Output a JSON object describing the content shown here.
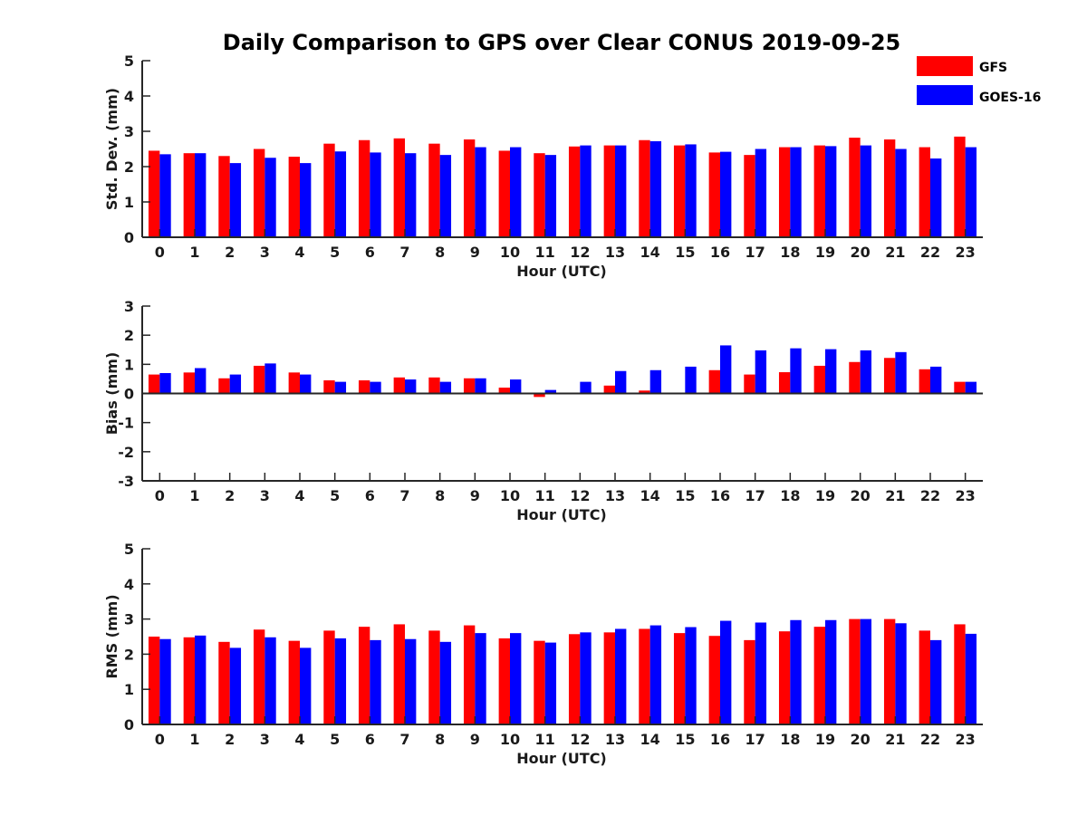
{
  "title": "Daily Comparison to GPS over Clear CONUS 2019-09-25",
  "legend": [
    {
      "name": "GFS",
      "color": "#ff0000"
    },
    {
      "name": "GOES-16",
      "color": "#0000ff"
    }
  ],
  "chart_data": [
    {
      "type": "bar",
      "id": "std",
      "xlabel": "Hour (UTC)",
      "ylabel": "Std. Dev. (mm)",
      "ylim": [
        0,
        5
      ],
      "yticks": [
        0,
        1,
        2,
        3,
        4,
        5
      ],
      "categories": [
        "0",
        "1",
        "2",
        "3",
        "4",
        "5",
        "6",
        "7",
        "8",
        "9",
        "10",
        "11",
        "12",
        "13",
        "14",
        "15",
        "16",
        "17",
        "18",
        "19",
        "20",
        "21",
        "22",
        "23"
      ],
      "series": [
        {
          "name": "GFS",
          "color": "#ff0000",
          "values": [
            2.45,
            2.38,
            2.3,
            2.5,
            2.28,
            2.65,
            2.75,
            2.8,
            2.65,
            2.77,
            2.45,
            2.38,
            2.57,
            2.6,
            2.75,
            2.6,
            2.4,
            2.33,
            2.55,
            2.6,
            2.82,
            2.77,
            2.55,
            2.85
          ]
        },
        {
          "name": "GOES-16",
          "color": "#0000ff",
          "values": [
            2.35,
            2.38,
            2.1,
            2.25,
            2.1,
            2.43,
            2.4,
            2.38,
            2.33,
            2.55,
            2.55,
            2.33,
            2.6,
            2.6,
            2.72,
            2.63,
            2.42,
            2.5,
            2.55,
            2.58,
            2.6,
            2.5,
            2.23,
            2.55
          ]
        }
      ]
    },
    {
      "type": "bar",
      "id": "bias",
      "xlabel": "Hour (UTC)",
      "ylabel": "Bias (mm)",
      "ylim": [
        -3,
        3
      ],
      "yticks": [
        -3,
        -2,
        -1,
        0,
        1,
        2,
        3
      ],
      "categories": [
        "0",
        "1",
        "2",
        "3",
        "4",
        "5",
        "6",
        "7",
        "8",
        "9",
        "10",
        "11",
        "12",
        "13",
        "14",
        "15",
        "16",
        "17",
        "18",
        "19",
        "20",
        "21",
        "22",
        "23"
      ],
      "series": [
        {
          "name": "GFS",
          "color": "#ff0000",
          "values": [
            0.65,
            0.72,
            0.52,
            0.95,
            0.72,
            0.45,
            0.45,
            0.55,
            0.55,
            0.52,
            0.2,
            -0.12,
            0.0,
            0.27,
            0.1,
            0.0,
            0.8,
            0.65,
            0.73,
            0.95,
            1.08,
            1.22,
            0.83,
            0.4
          ]
        },
        {
          "name": "GOES-16",
          "color": "#0000ff",
          "values": [
            0.7,
            0.87,
            0.65,
            1.03,
            0.65,
            0.4,
            0.4,
            0.48,
            0.4,
            0.52,
            0.48,
            0.12,
            0.4,
            0.77,
            0.8,
            0.92,
            1.65,
            1.48,
            1.55,
            1.52,
            1.48,
            1.42,
            0.92,
            0.4
          ]
        }
      ]
    },
    {
      "type": "bar",
      "id": "rms",
      "xlabel": "Hour (UTC)",
      "ylabel": "RMS (mm)",
      "ylim": [
        0,
        5
      ],
      "yticks": [
        0,
        1,
        2,
        3,
        4,
        5
      ],
      "categories": [
        "0",
        "1",
        "2",
        "3",
        "4",
        "5",
        "6",
        "7",
        "8",
        "9",
        "10",
        "11",
        "12",
        "13",
        "14",
        "15",
        "16",
        "17",
        "18",
        "19",
        "20",
        "21",
        "22",
        "23"
      ],
      "series": [
        {
          "name": "GFS",
          "color": "#ff0000",
          "values": [
            2.5,
            2.48,
            2.35,
            2.7,
            2.38,
            2.67,
            2.78,
            2.85,
            2.67,
            2.82,
            2.45,
            2.38,
            2.57,
            2.62,
            2.72,
            2.6,
            2.52,
            2.4,
            2.65,
            2.78,
            3.0,
            3.0,
            2.67,
            2.85
          ]
        },
        {
          "name": "GOES-16",
          "color": "#0000ff",
          "values": [
            2.43,
            2.53,
            2.18,
            2.48,
            2.18,
            2.45,
            2.4,
            2.43,
            2.35,
            2.6,
            2.6,
            2.33,
            2.62,
            2.72,
            2.82,
            2.77,
            2.95,
            2.9,
            2.97,
            2.97,
            3.0,
            2.88,
            2.4,
            2.58
          ]
        }
      ]
    }
  ]
}
